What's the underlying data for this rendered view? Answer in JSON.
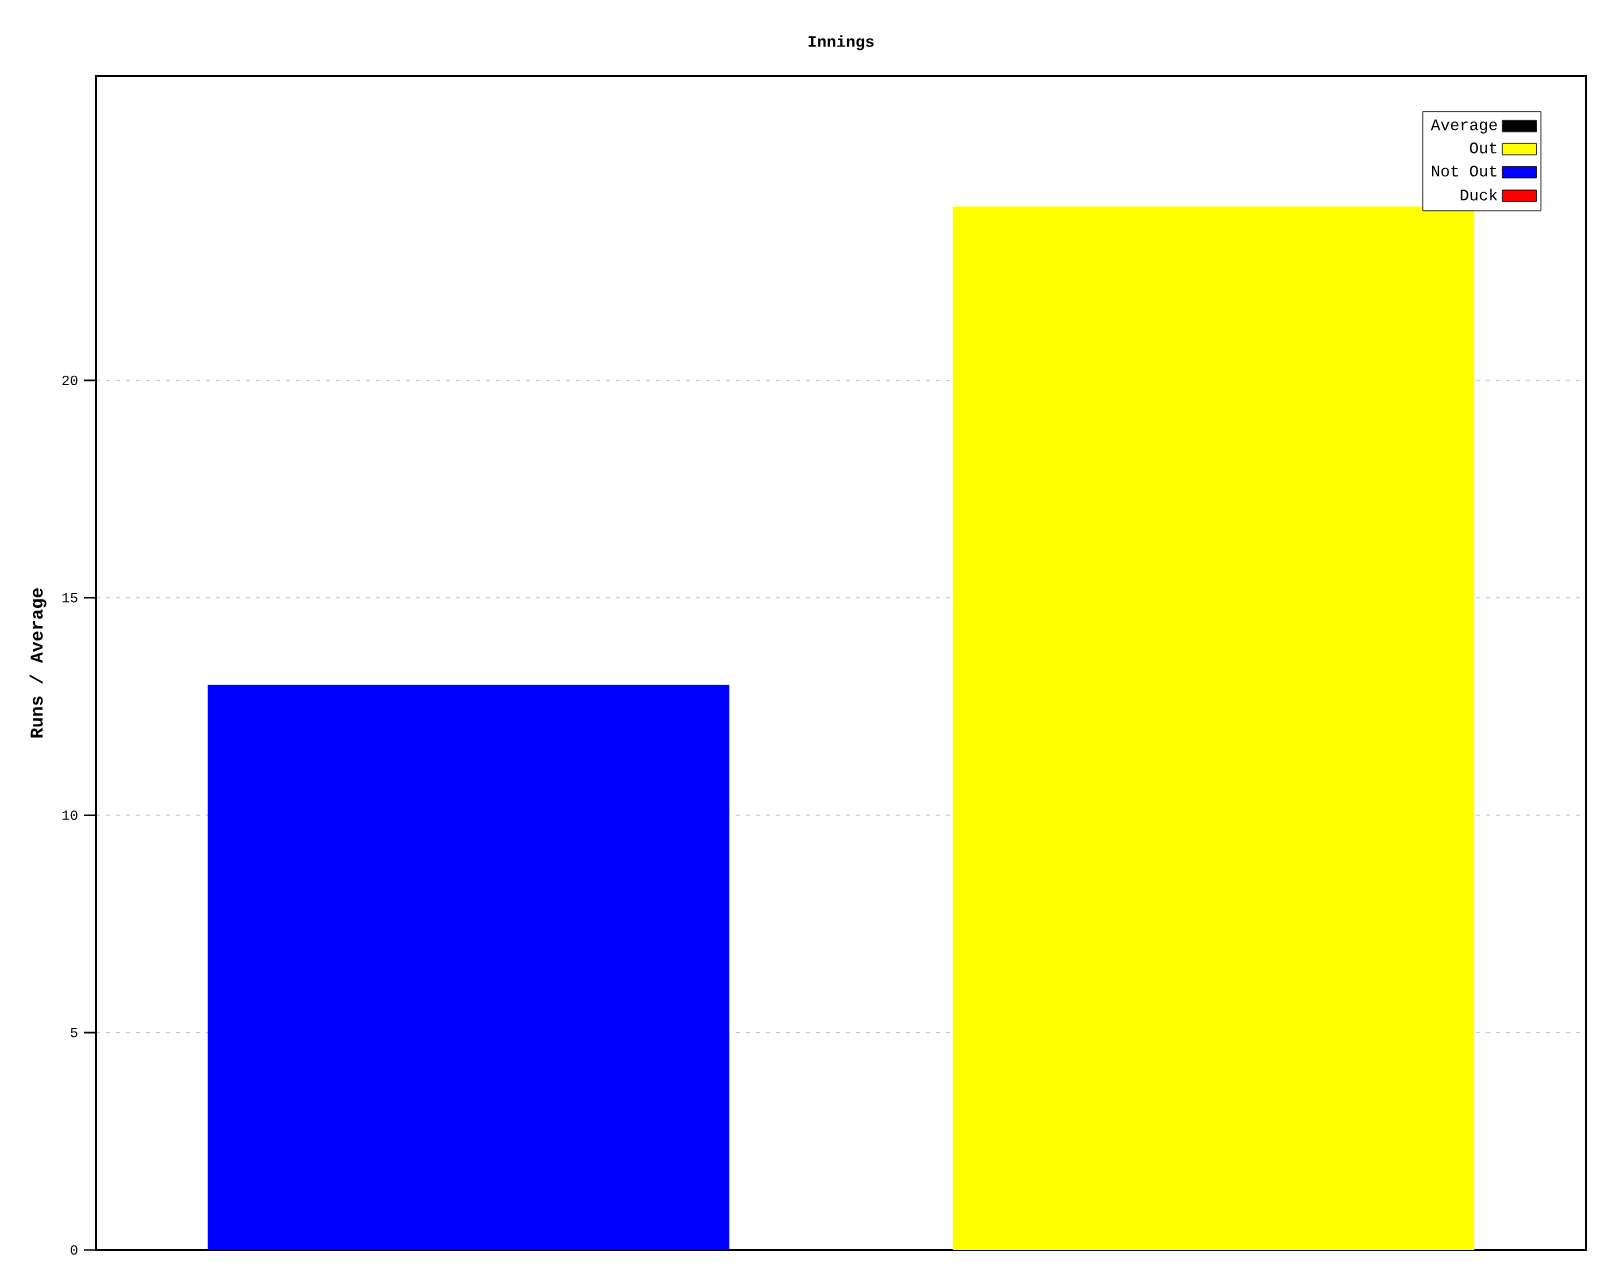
{
  "chart_data": {
    "type": "bar",
    "title": "Innings",
    "ylabel": "Runs / Average",
    "categories": [
      null,
      null
    ],
    "series": [
      {
        "name": "Average",
        "color": "#000000",
        "values": [
          null,
          null
        ]
      },
      {
        "name": "Out",
        "color": "#ffff00",
        "values": [
          null,
          24
        ]
      },
      {
        "name": "Not Out",
        "color": "#0000ff",
        "values": [
          13,
          null
        ]
      },
      {
        "name": "Duck",
        "color": "#ff0000",
        "values": [
          null,
          null
        ]
      }
    ],
    "ylim": [
      0,
      27
    ],
    "yticks": [
      0,
      5,
      10,
      15,
      20
    ],
    "grid": "y",
    "legend": "top right",
    "tick_labels": "y"
  }
}
